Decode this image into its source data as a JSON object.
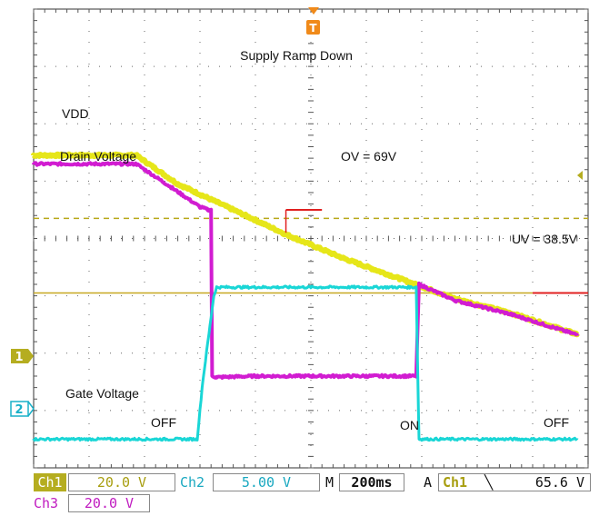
{
  "chart_data": {
    "type": "line",
    "title": "Supply Ramp Down",
    "xlabel": "",
    "ylabel": "",
    "x_divisions": 10,
    "y_divisions": 8,
    "x_unit_per_div_ms": 200,
    "grid": true,
    "series": [
      {
        "name": "VDD",
        "channel": "Ch1",
        "color": "#e6e619",
        "points": [
          [
            0,
            5.45
          ],
          [
            1.85,
            5.45
          ],
          [
            2.6,
            4.95
          ],
          [
            3.6,
            4.5
          ],
          [
            4.6,
            4.05
          ],
          [
            5.6,
            3.65
          ],
          [
            6.6,
            3.3
          ],
          [
            7.6,
            2.95
          ],
          [
            8.6,
            2.7
          ],
          [
            9.8,
            2.33
          ]
        ],
        "annotations": [
          {
            "text": "OV = 69V",
            "x": 3.7,
            "y": 4.7
          },
          {
            "text": "UV = 38.5V",
            "x": 7.4,
            "y": 2.95
          }
        ]
      },
      {
        "name": "Drain Voltage",
        "channel": "Ch3",
        "color": "#d11cd1",
        "points": [
          [
            0,
            5.3
          ],
          [
            1.85,
            5.3
          ],
          [
            2.5,
            4.88
          ],
          [
            3.0,
            4.55
          ],
          [
            3.15,
            4.5
          ],
          [
            3.2,
            4.5
          ],
          [
            3.22,
            1.6
          ],
          [
            3.3,
            1.58
          ],
          [
            4.0,
            1.6
          ],
          [
            5.0,
            1.6
          ],
          [
            6.0,
            1.6
          ],
          [
            6.5,
            1.6
          ],
          [
            6.9,
            1.6
          ],
          [
            6.95,
            3.2
          ],
          [
            7.6,
            2.92
          ],
          [
            8.6,
            2.68
          ],
          [
            9.8,
            2.32
          ]
        ]
      },
      {
        "name": "Gate Voltage",
        "channel": "Ch2",
        "color": "#19d6d6",
        "points": [
          [
            0,
            0.5
          ],
          [
            2.8,
            0.5
          ],
          [
            2.95,
            0.5
          ],
          [
            3.05,
            1.5
          ],
          [
            3.25,
            3.0
          ],
          [
            3.3,
            3.15
          ],
          [
            4,
            3.15
          ],
          [
            5,
            3.15
          ],
          [
            6,
            3.15
          ],
          [
            6.9,
            3.15
          ],
          [
            6.95,
            0.5
          ],
          [
            7.0,
            0.5
          ],
          [
            9.8,
            0.5
          ]
        ],
        "annotations": [
          {
            "text": "OFF",
            "x": 1.45,
            "y": 0.2
          },
          {
            "text": "ON",
            "x": 4.55,
            "y": 0.17
          },
          {
            "text": "OFF",
            "x": 8.03,
            "y": 0.2
          }
        ]
      }
    ],
    "reference_lines": [
      {
        "label": "OV = 69V",
        "y": 4.35,
        "style": "dashed",
        "color": "#b8a818"
      },
      {
        "label": "UV = 38.5V",
        "y": 3.05,
        "style": "solid",
        "color": "#c8a820"
      }
    ]
  },
  "text": {
    "title": "Supply Ramp Down",
    "vdd": "VDD",
    "drain": "Drain Voltage",
    "ov": "OV = 69V",
    "uv": "UV = 38.5V",
    "gate": "Gate Voltage",
    "off1": "OFF",
    "on": "ON",
    "off2": "OFF",
    "trig": "T",
    "marker1": "1",
    "marker2": "2"
  },
  "status": {
    "ch1_label": "Ch1",
    "ch1_scale": "20.0 V",
    "ch2_label": "Ch2",
    "ch2_scale": "5.00 V",
    "m_label": "M",
    "timebase": "200ms",
    "a_label": "A",
    "trig_ch": "Ch1",
    "trig_slope": "⫅",
    "trig_slope_glyph": "╲",
    "trig_level": "65.6 V",
    "ch3_label": "Ch3",
    "ch3_scale": "20.0 V"
  },
  "colors": {
    "ch1": "#e6e619",
    "ch2": "#19d6d6",
    "ch3": "#d11cd1",
    "trigger": "#f08a1a",
    "grid": "#555555",
    "ov_line": "#b8a818",
    "uv_line": "#c8a820",
    "red_mark": "#e02020"
  }
}
